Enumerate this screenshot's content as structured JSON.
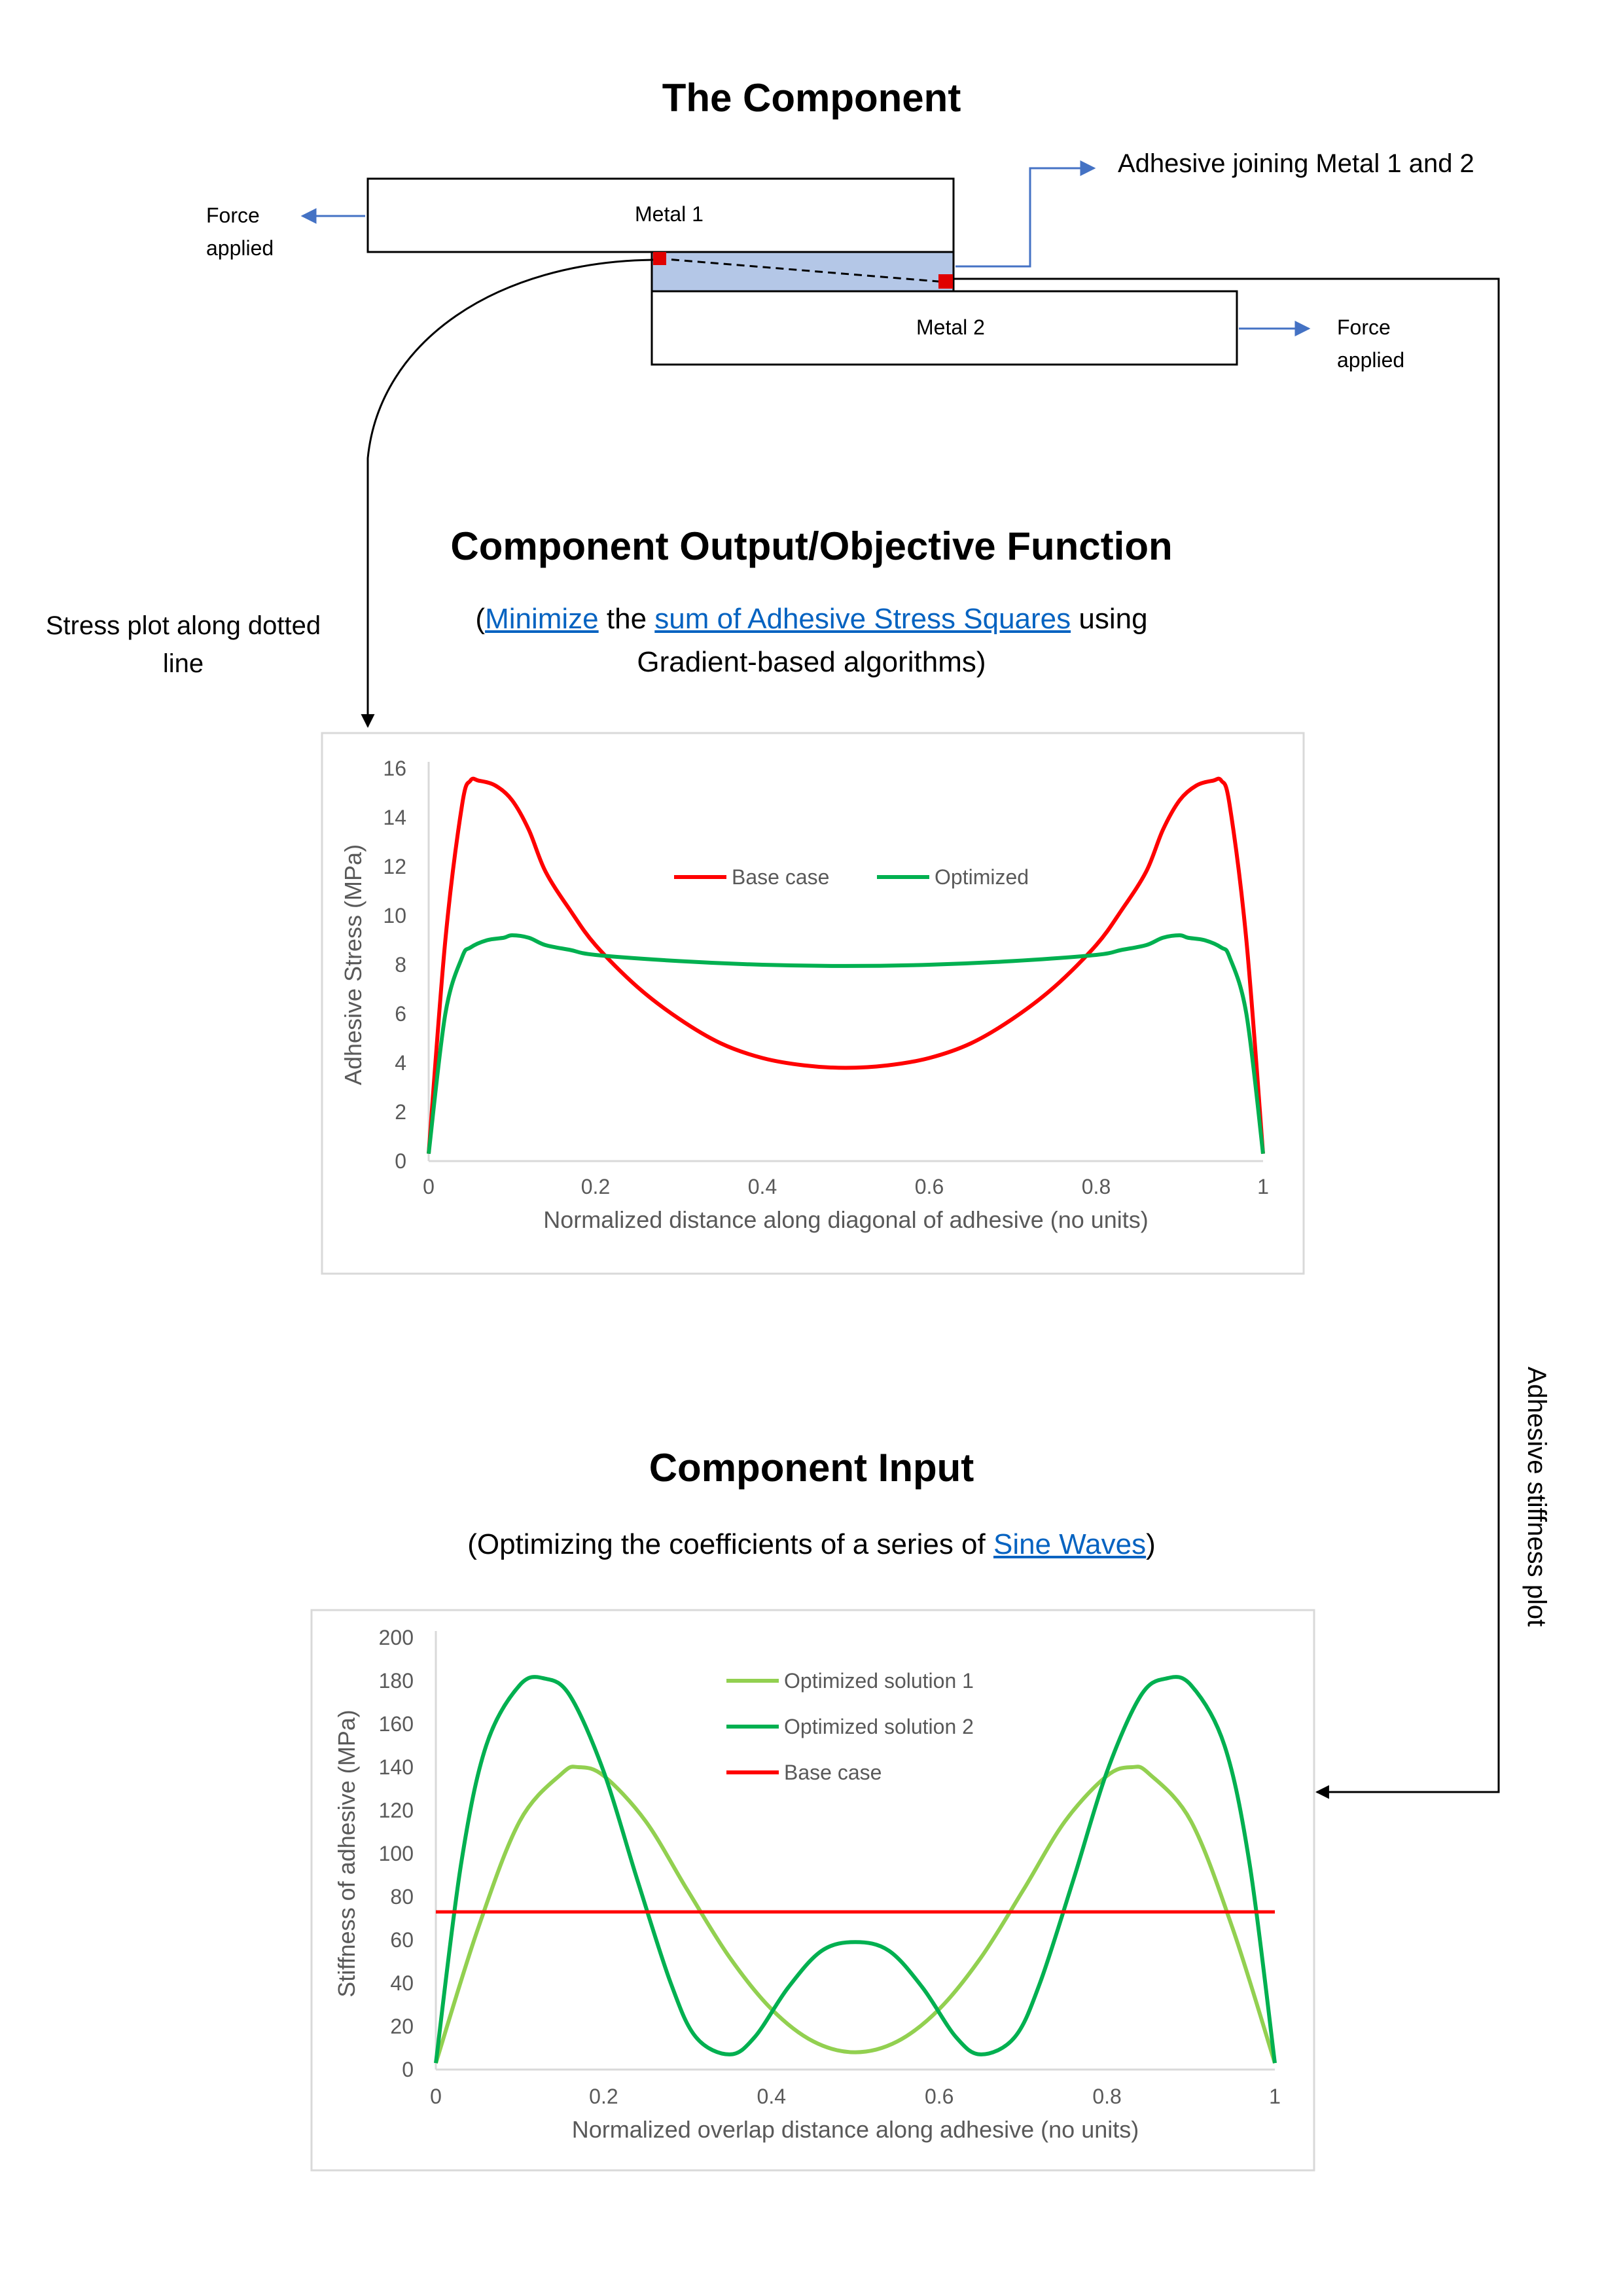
{
  "component": {
    "title": "The Component",
    "metal1_label": "Metal 1",
    "metal2_label": "Metal 2",
    "force_left": [
      "Force",
      "applied"
    ],
    "force_right": [
      "Force",
      "applied"
    ],
    "adhesive_label": "Adhesive joining Metal 1 and 2",
    "stress_note": [
      "Stress plot along dotted",
      "line"
    ],
    "stiffness_note": "Adhesive stiffness plot",
    "colors": {
      "adhesive_fill": "#b4c7e7",
      "marker": "#e00000",
      "arrow_blue": "#4472c4"
    }
  },
  "output": {
    "title": "Component Output/Objective Function",
    "line1_open": "(",
    "line1_link1": "Minimize",
    "line1_mid": " the ",
    "line1_link2": "sum of Adhesive Stress Squares",
    "line1_end": " using",
    "line2": "Gradient-based algorithms)"
  },
  "input": {
    "title": "Component Input",
    "text_before": "(Optimizing the coefficients of a series of ",
    "link": "Sine Waves",
    "text_after": ")"
  },
  "chart_data": [
    {
      "type": "line",
      "xlabel": "Normalized distance along diagonal of adhesive (no units)",
      "ylabel": "Adhesive Stress (MPa)",
      "xlim": [
        0,
        1
      ],
      "ylim": [
        0,
        16
      ],
      "xticks": [
        "0",
        "0.2",
        "0.4",
        "0.6",
        "0.8",
        "1"
      ],
      "yticks": [
        "0",
        "2",
        "4",
        "6",
        "8",
        "10",
        "12",
        "14",
        "16"
      ],
      "grid": false,
      "legend": "center-top",
      "series": [
        {
          "name": "Base case",
          "color": "#ff0000",
          "x": [
            0,
            0.02,
            0.04,
            0.05,
            0.06,
            0.08,
            0.1,
            0.12,
            0.14,
            0.17,
            0.2,
            0.25,
            0.3,
            0.35,
            0.4,
            0.45,
            0.5,
            0.55,
            0.6,
            0.65,
            0.7,
            0.75,
            0.8,
            0.83,
            0.86,
            0.88,
            0.9,
            0.92,
            0.94,
            0.95,
            0.96,
            0.98,
            1.0
          ],
          "y": [
            0.3,
            9.0,
            14.5,
            15.5,
            15.5,
            15.3,
            14.7,
            13.5,
            11.8,
            10.2,
            8.8,
            7.1,
            5.8,
            4.8,
            4.2,
            3.9,
            3.8,
            3.9,
            4.2,
            4.8,
            5.8,
            7.1,
            8.8,
            10.2,
            11.8,
            13.5,
            14.7,
            15.3,
            15.5,
            15.5,
            14.5,
            9.0,
            0.3
          ]
        },
        {
          "name": "Optimized",
          "color": "#00b050",
          "x": [
            0,
            0.02,
            0.04,
            0.05,
            0.07,
            0.09,
            0.1,
            0.12,
            0.14,
            0.17,
            0.2,
            0.3,
            0.4,
            0.5,
            0.6,
            0.7,
            0.8,
            0.83,
            0.86,
            0.88,
            0.9,
            0.91,
            0.93,
            0.95,
            0.96,
            0.98,
            1.0
          ],
          "y": [
            0.3,
            6.0,
            8.3,
            8.7,
            9.0,
            9.1,
            9.2,
            9.1,
            8.8,
            8.6,
            8.4,
            8.15,
            8.0,
            7.95,
            8.0,
            8.15,
            8.4,
            8.6,
            8.8,
            9.1,
            9.2,
            9.1,
            9.0,
            8.7,
            8.3,
            6.0,
            0.3
          ]
        }
      ]
    },
    {
      "type": "line",
      "xlabel": "Normalized overlap distance along adhesive (no units)",
      "ylabel": "Stiffness of adhesive (MPa)",
      "xlim": [
        0,
        1
      ],
      "ylim": [
        0,
        200
      ],
      "xticks": [
        "0",
        "0.2",
        "0.4",
        "0.6",
        "0.8",
        "1"
      ],
      "yticks": [
        "0",
        "20",
        "40",
        "60",
        "80",
        "100",
        "120",
        "140",
        "160",
        "180",
        "200"
      ],
      "grid": false,
      "legend": "center-top",
      "series": [
        {
          "name": "Optimized solution 1",
          "color": "#92d050",
          "x": [
            0,
            0.05,
            0.1,
            0.15,
            0.17,
            0.2,
            0.25,
            0.3,
            0.35,
            0.4,
            0.45,
            0.5,
            0.55,
            0.6,
            0.65,
            0.7,
            0.75,
            0.8,
            0.83,
            0.85,
            0.9,
            0.95,
            1.0
          ],
          "y": [
            3,
            65,
            115,
            137,
            140,
            136,
            115,
            83,
            52,
            28,
            13,
            8,
            13,
            28,
            52,
            83,
            115,
            136,
            140,
            137,
            115,
            65,
            3
          ],
          "lw": 6
        },
        {
          "name": "Optimized solution 2",
          "color": "#00b050",
          "x": [
            0,
            0.03,
            0.06,
            0.1,
            0.13,
            0.16,
            0.2,
            0.24,
            0.28,
            0.31,
            0.35,
            0.38,
            0.42,
            0.46,
            0.5,
            0.54,
            0.58,
            0.62,
            0.65,
            0.69,
            0.72,
            0.76,
            0.8,
            0.84,
            0.87,
            0.9,
            0.94,
            0.97,
            1.0
          ],
          "y": [
            3,
            95,
            150,
            178,
            181,
            173,
            138,
            88,
            40,
            15,
            7,
            15,
            38,
            55,
            59,
            55,
            38,
            15,
            7,
            15,
            40,
            88,
            138,
            173,
            181,
            178,
            150,
            95,
            3
          ],
          "lw": 6
        },
        {
          "name": "Base case",
          "color": "#ff0000",
          "x": [
            0,
            1
          ],
          "y": [
            73,
            73
          ],
          "lw": 5
        }
      ]
    }
  ]
}
